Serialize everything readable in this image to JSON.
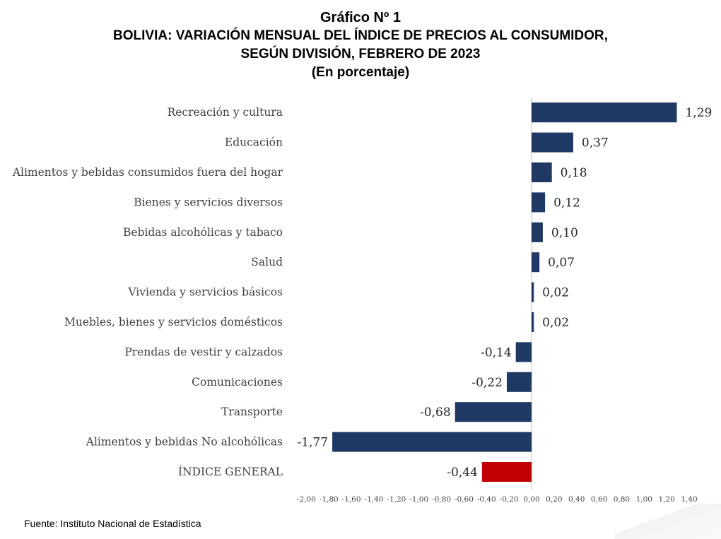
{
  "title": {
    "line1": "Gráfico Nº 1",
    "line2": "BOLIVIA: VARIACIÓN MENSUAL DEL ÍNDICE DE PRECIOS AL CONSUMIDOR,",
    "line3": "SEGÚN DIVISIÓN, FEBRERO DE 2023",
    "line4": "(En porcentaje)"
  },
  "source": "Fuente: Instituto Nacional de Estadística",
  "chart_data": {
    "type": "bar",
    "orientation": "horizontal",
    "categories": [
      "Recreación y cultura",
      "Educación",
      "Alimentos y bebidas consumidos fuera del hogar",
      "Bienes y servicios diversos",
      "Bebidas alcohólicas y tabaco",
      "Salud",
      "Vivienda y servicios básicos",
      "Muebles, bienes y servicios domésticos",
      "Prendas de vestir y calzados",
      "Comunicaciones",
      "Transporte",
      "Alimentos y bebidas No alcohólicas",
      "ÍNDICE GENERAL"
    ],
    "values": [
      1.29,
      0.37,
      0.18,
      0.12,
      0.1,
      0.07,
      0.02,
      0.02,
      -0.14,
      -0.22,
      -0.68,
      -1.77,
      -0.44
    ],
    "value_labels": [
      "1,29",
      "0,37",
      "0,18",
      "0,12",
      "0,10",
      "0,07",
      "0,02",
      "0,02",
      "-0,14",
      "-0,22",
      "-0,68",
      "-1,77",
      "-0,44"
    ],
    "bar_colors": [
      "#203864",
      "#203864",
      "#203864",
      "#203864",
      "#203864",
      "#203864",
      "#203864",
      "#203864",
      "#203864",
      "#203864",
      "#203864",
      "#203864",
      "#c00000"
    ],
    "xlim": [
      -2.0,
      1.4
    ],
    "xticks": [
      -2.0,
      -1.8,
      -1.6,
      -1.4,
      -1.2,
      -1.0,
      -0.8,
      -0.6,
      -0.4,
      -0.2,
      0.0,
      0.2,
      0.4,
      0.6,
      0.8,
      1.0,
      1.2,
      1.4
    ],
    "xtick_labels": [
      "-2,00",
      "-1,80",
      "-1,60",
      "-1,40",
      "-1,20",
      "-1,00",
      "-0,80",
      "-0,60",
      "-0,40",
      "-0,20",
      "0,00",
      "0,20",
      "0,40",
      "0,60",
      "0,80",
      "1,00",
      "1,20",
      "1,40"
    ],
    "grid": false,
    "legend": "none",
    "xlabel": "",
    "ylabel": ""
  }
}
